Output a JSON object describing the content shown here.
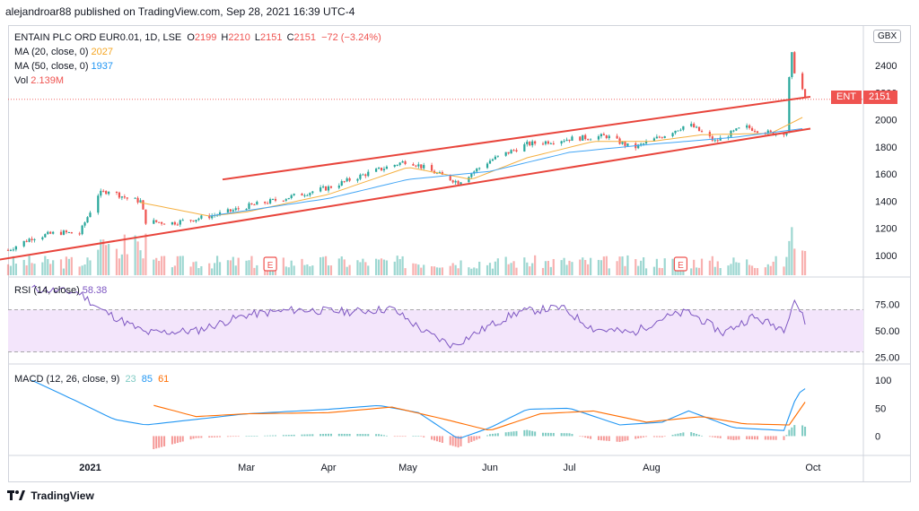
{
  "header": {
    "published": "alejandroar88 published on TradingView.com, Sep 28, 2021 16:39 UTC-4"
  },
  "symbol": {
    "title": "ENTAIN PLC ORD EUR0.01, 1D, LSE",
    "o_label": "O",
    "o": "2199",
    "h_label": "H",
    "h": "2210",
    "l_label": "L",
    "l": "2151",
    "c_label": "C",
    "c": "2151",
    "change": "−72 (−3.24%)",
    "ticker": "ENT",
    "last_price": "2151",
    "currency": "GBX"
  },
  "indicators": {
    "ma20_label": "MA (20, close, 0)",
    "ma20_value": "2027",
    "ma50_label": "MA (50, close, 0)",
    "ma50_value": "1937",
    "vol_label": "Vol",
    "vol_value": "2.139M",
    "rsi_label": "RSI (14, close)",
    "rsi_value": "58.38",
    "macd_label": "MACD (12, 26, close, 9)",
    "macd_value1": "23",
    "macd_value2": "85",
    "macd_value3": "61"
  },
  "colors": {
    "up": "#26a69a",
    "down": "#ef5350",
    "ma20": "#f5b041",
    "ma50": "#42a5f5",
    "rsi": "#7e57c2",
    "rsi_band": "#f3e5fb",
    "channel": "#e8453c",
    "macd": "#2196f3",
    "signal": "#ff6d00",
    "grid_text": "#131722"
  },
  "earnings_marker": "E",
  "footer": {
    "brand": "TradingView",
    "logo_icon": "tv-logo-icon"
  },
  "chart_data": [
    {
      "type": "candlestick",
      "pane": "price",
      "yaxis_ticks": [
        1000,
        1200,
        1400,
        1600,
        1800,
        2000,
        2200,
        2400
      ],
      "ylim": [
        900,
        2520
      ],
      "x_labels": [
        "2021",
        "Mar",
        "Apr",
        "May",
        "Jun",
        "Jul",
        "Aug",
        "Oct"
      ],
      "x_start": "2020-12-01",
      "x_end": "2021-10-20",
      "label_dates": [
        "2021-01-01",
        "2021-03-01",
        "2021-04-01",
        "2021-05-01",
        "2021-06-01",
        "2021-07-01",
        "2021-08-01",
        "2021-10-01"
      ],
      "price_anchors": [
        [
          "2020-12-01",
          1040
        ],
        [
          "2020-12-10",
          1130
        ],
        [
          "2020-12-20",
          1170
        ],
        [
          "2020-12-28",
          1160
        ],
        [
          "2021-01-04",
          1450
        ],
        [
          "2021-01-08",
          1480
        ],
        [
          "2021-01-15",
          1420
        ],
        [
          "2021-01-20",
          1400
        ],
        [
          "2021-01-22",
          1250
        ],
        [
          "2021-02-01",
          1240
        ],
        [
          "2021-02-10",
          1270
        ],
        [
          "2021-02-20",
          1310
        ],
        [
          "2021-03-01",
          1360
        ],
        [
          "2021-03-15",
          1420
        ],
        [
          "2021-04-01",
          1500
        ],
        [
          "2021-04-15",
          1600
        ],
        [
          "2021-05-01",
          1700
        ],
        [
          "2021-05-10",
          1620
        ],
        [
          "2021-05-20",
          1540
        ],
        [
          "2021-06-01",
          1700
        ],
        [
          "2021-06-15",
          1820
        ],
        [
          "2021-07-01",
          1860
        ],
        [
          "2021-07-15",
          1880
        ],
        [
          "2021-07-25",
          1790
        ],
        [
          "2021-08-05",
          1880
        ],
        [
          "2021-08-15",
          1970
        ],
        [
          "2021-08-25",
          1840
        ],
        [
          "2021-09-05",
          1950
        ],
        [
          "2021-09-15",
          1900
        ],
        [
          "2021-09-21",
          1910
        ],
        [
          "2021-09-22",
          2300
        ],
        [
          "2021-09-23",
          2480
        ],
        [
          "2021-09-24",
          2360
        ],
        [
          "2021-09-27",
          2223
        ],
        [
          "2021-09-28",
          2151
        ]
      ],
      "ma20": [
        [
          "2021-01-20",
          1390
        ],
        [
          "2021-02-15",
          1290
        ],
        [
          "2021-03-01",
          1320
        ],
        [
          "2021-04-01",
          1450
        ],
        [
          "2021-05-01",
          1650
        ],
        [
          "2021-05-25",
          1560
        ],
        [
          "2021-06-15",
          1720
        ],
        [
          "2021-07-10",
          1840
        ],
        [
          "2021-08-01",
          1840
        ],
        [
          "2021-08-20",
          1890
        ],
        [
          "2021-09-15",
          1900
        ],
        [
          "2021-09-28",
          2027
        ]
      ],
      "ma50": [
        [
          "2021-02-15",
          1290
        ],
        [
          "2021-03-01",
          1330
        ],
        [
          "2021-04-01",
          1420
        ],
        [
          "2021-05-01",
          1560
        ],
        [
          "2021-06-01",
          1620
        ],
        [
          "2021-07-01",
          1760
        ],
        [
          "2021-08-01",
          1820
        ],
        [
          "2021-09-01",
          1870
        ],
        [
          "2021-09-28",
          1937
        ]
      ],
      "channel_upper": [
        [
          "2021-02-20",
          1560
        ],
        [
          "2021-09-30",
          2170
        ]
      ],
      "channel_lower": [
        [
          "2020-11-25",
          960
        ],
        [
          "2021-09-30",
          1935
        ]
      ],
      "earnings_dates": [
        "2021-03-10",
        "2021-08-12"
      ],
      "volume_ylim": [
        0,
        6000000
      ],
      "volume_last": 2139000
    },
    {
      "type": "line",
      "pane": "rsi",
      "yaxis_ticks": [
        25,
        50,
        75
      ],
      "ylim": [
        22,
        95
      ],
      "band": [
        30,
        70
      ],
      "anchors": [
        [
          "2020-12-10",
          90
        ],
        [
          "2020-12-28",
          86
        ],
        [
          "2021-01-05",
          70
        ],
        [
          "2021-01-22",
          48
        ],
        [
          "2021-02-10",
          50
        ],
        [
          "2021-03-01",
          65
        ],
        [
          "2021-03-20",
          70
        ],
        [
          "2021-04-10",
          68
        ],
        [
          "2021-04-25",
          71
        ],
        [
          "2021-05-08",
          48
        ],
        [
          "2021-05-18",
          36
        ],
        [
          "2021-06-01",
          55
        ],
        [
          "2021-06-12",
          68
        ],
        [
          "2021-06-28",
          72
        ],
        [
          "2021-07-10",
          52
        ],
        [
          "2021-07-25",
          48
        ],
        [
          "2021-08-05",
          62
        ],
        [
          "2021-08-15",
          68
        ],
        [
          "2021-08-28",
          48
        ],
        [
          "2021-09-08",
          63
        ],
        [
          "2021-09-20",
          52
        ],
        [
          "2021-09-24",
          80
        ],
        [
          "2021-09-28",
          58.38
        ]
      ]
    },
    {
      "type": "macd",
      "pane": "macd",
      "yaxis_ticks": [
        0,
        50,
        100
      ],
      "ylim": [
        -25,
        110
      ],
      "macd": [
        [
          "2020-12-10",
          100
        ],
        [
          "2020-12-28",
          60
        ],
        [
          "2021-01-10",
          30
        ],
        [
          "2021-01-22",
          20
        ],
        [
          "2021-02-10",
          30
        ],
        [
          "2021-03-01",
          40
        ],
        [
          "2021-04-01",
          48
        ],
        [
          "2021-04-20",
          55
        ],
        [
          "2021-05-05",
          42
        ],
        [
          "2021-05-20",
          -5
        ],
        [
          "2021-06-01",
          15
        ],
        [
          "2021-06-15",
          48
        ],
        [
          "2021-07-01",
          50
        ],
        [
          "2021-07-20",
          20
        ],
        [
          "2021-08-05",
          25
        ],
        [
          "2021-08-15",
          45
        ],
        [
          "2021-09-01",
          15
        ],
        [
          "2021-09-20",
          10
        ],
        [
          "2021-09-25",
          75
        ],
        [
          "2021-09-28",
          85
        ]
      ],
      "signal": [
        [
          "2021-01-25",
          55
        ],
        [
          "2021-02-10",
          35
        ],
        [
          "2021-03-01",
          40
        ],
        [
          "2021-04-01",
          42
        ],
        [
          "2021-04-25",
          52
        ],
        [
          "2021-05-15",
          30
        ],
        [
          "2021-06-01",
          10
        ],
        [
          "2021-06-20",
          40
        ],
        [
          "2021-07-10",
          45
        ],
        [
          "2021-07-30",
          25
        ],
        [
          "2021-08-20",
          35
        ],
        [
          "2021-09-05",
          22
        ],
        [
          "2021-09-22",
          20
        ],
        [
          "2021-09-28",
          61
        ]
      ],
      "hist_last": 23
    }
  ]
}
